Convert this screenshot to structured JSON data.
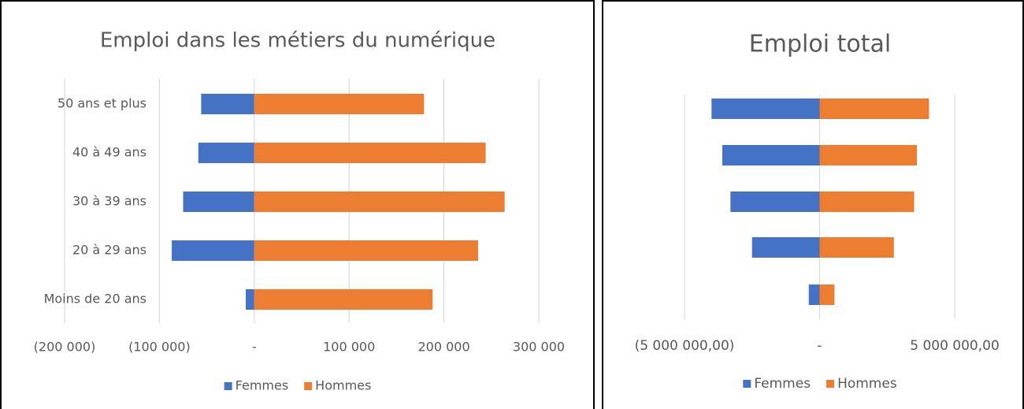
{
  "chart_data": [
    {
      "type": "bar",
      "title": "Emploi dans les métiers du numérique",
      "categories": [
        "50 ans et plus",
        "40 à 49 ans",
        "30 à 39 ans",
        "20 à 29 ans",
        "Moins de 20 ans"
      ],
      "series": [
        {
          "name": "Femmes",
          "color": "#4472c4",
          "values": [
            -56000,
            -59000,
            -75000,
            -87000,
            -9000
          ]
        },
        {
          "name": "Hommes",
          "color": "#ed7d31",
          "values": [
            179000,
            244000,
            264000,
            236000,
            188000
          ]
        }
      ],
      "xlim": [
        -200000,
        300000
      ],
      "xticks": [
        {
          "value": -200000,
          "label": "(200 000)"
        },
        {
          "value": -100000,
          "label": "(100 000)"
        },
        {
          "value": 0,
          "label": "-"
        },
        {
          "value": 100000,
          "label": "100 000"
        },
        {
          "value": 200000,
          "label": "200 000"
        },
        {
          "value": 300000,
          "label": "300 000"
        }
      ],
      "grid": true,
      "legend": "bottom"
    },
    {
      "type": "bar",
      "title": "Emploi total",
      "series": [
        {
          "name": "Femmes",
          "color": "#4472c4",
          "values": [
            -4000000,
            -3600000,
            -3300000,
            -2500000,
            -400000
          ]
        },
        {
          "name": "Hommes",
          "color": "#ed7d31",
          "values": [
            4050000,
            3600000,
            3500000,
            2750000,
            550000
          ]
        }
      ],
      "xlim": [
        -5000000,
        5000000
      ],
      "xticks": [
        {
          "value": -5000000,
          "label": "(5 000 000,00)"
        },
        {
          "value": 0,
          "label": "-"
        },
        {
          "value": 5000000,
          "label": "5 000 000,00"
        }
      ],
      "grid": true,
      "legend": "bottom"
    }
  ]
}
